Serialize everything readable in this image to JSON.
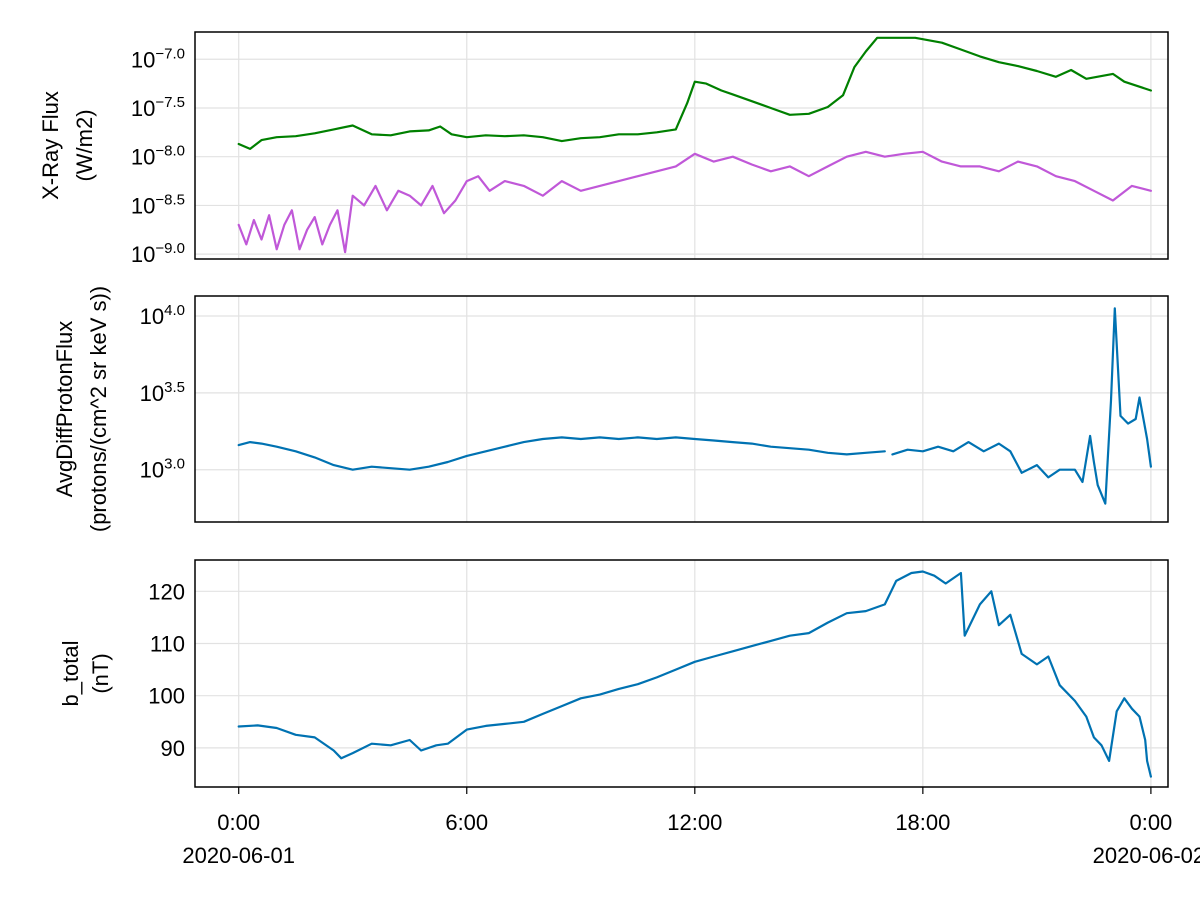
{
  "chart_data": [
    {
      "type": "line",
      "panel": "xray",
      "ylabel": [
        "X-Ray Flux",
        "(W/m2)"
      ],
      "yscale": "log10",
      "ylim": [
        -9.05,
        -6.72
      ],
      "yticks": [
        {
          "exp": -7.0,
          "label": "10",
          "sup": "−7.0"
        },
        {
          "exp": -7.5,
          "label": "10",
          "sup": "−7.5"
        },
        {
          "exp": -8.0,
          "label": "10",
          "sup": "−8.0"
        },
        {
          "exp": -8.5,
          "label": "10",
          "sup": "−8.5"
        },
        {
          "exp": -9.0,
          "label": "10",
          "sup": "−9.0"
        }
      ],
      "grid": true,
      "series": [
        {
          "color": "#008000",
          "log_values": [
            [
              0,
              -7.87
            ],
            [
              0.3,
              -7.92
            ],
            [
              0.6,
              -7.83
            ],
            [
              1.0,
              -7.8
            ],
            [
              1.5,
              -7.79
            ],
            [
              2.0,
              -7.76
            ],
            [
              2.5,
              -7.72
            ],
            [
              3.0,
              -7.68
            ],
            [
              3.5,
              -7.77
            ],
            [
              4.0,
              -7.78
            ],
            [
              4.5,
              -7.74
            ],
            [
              5.0,
              -7.73
            ],
            [
              5.3,
              -7.69
            ],
            [
              5.6,
              -7.77
            ],
            [
              6.0,
              -7.8
            ],
            [
              6.5,
              -7.78
            ],
            [
              7.0,
              -7.79
            ],
            [
              7.5,
              -7.78
            ],
            [
              8.0,
              -7.8
            ],
            [
              8.5,
              -7.84
            ],
            [
              9.0,
              -7.81
            ],
            [
              9.5,
              -7.8
            ],
            [
              10.0,
              -7.77
            ],
            [
              10.5,
              -7.77
            ],
            [
              11.0,
              -7.75
            ],
            [
              11.5,
              -7.72
            ],
            [
              11.8,
              -7.45
            ],
            [
              12.0,
              -7.23
            ],
            [
              12.3,
              -7.25
            ],
            [
              12.7,
              -7.32
            ],
            [
              13.0,
              -7.36
            ],
            [
              13.5,
              -7.43
            ],
            [
              14.0,
              -7.5
            ],
            [
              14.5,
              -7.57
            ],
            [
              15.0,
              -7.56
            ],
            [
              15.5,
              -7.49
            ],
            [
              15.9,
              -7.37
            ],
            [
              16.2,
              -7.08
            ],
            [
              16.5,
              -6.92
            ],
            [
              16.8,
              -6.78
            ],
            [
              17.2,
              -6.78
            ],
            [
              17.8,
              -6.78
            ],
            [
              18.5,
              -6.83
            ],
            [
              19.0,
              -6.9
            ],
            [
              19.5,
              -6.97
            ],
            [
              20.0,
              -7.03
            ],
            [
              20.5,
              -7.07
            ],
            [
              21.0,
              -7.12
            ],
            [
              21.5,
              -7.18
            ],
            [
              21.9,
              -7.11
            ],
            [
              22.3,
              -7.2
            ],
            [
              23.0,
              -7.15
            ],
            [
              23.3,
              -7.23
            ],
            [
              24.0,
              -7.32
            ]
          ]
        },
        {
          "color": "#c058d8",
          "log_values": [
            [
              0,
              -8.7
            ],
            [
              0.2,
              -8.9
            ],
            [
              0.4,
              -8.65
            ],
            [
              0.6,
              -8.85
            ],
            [
              0.8,
              -8.6
            ],
            [
              1.0,
              -8.95
            ],
            [
              1.2,
              -8.7
            ],
            [
              1.4,
              -8.55
            ],
            [
              1.6,
              -8.95
            ],
            [
              1.8,
              -8.75
            ],
            [
              2.0,
              -8.62
            ],
            [
              2.2,
              -8.9
            ],
            [
              2.4,
              -8.7
            ],
            [
              2.6,
              -8.55
            ],
            [
              2.8,
              -8.98
            ],
            [
              3.0,
              -8.4
            ],
            [
              3.3,
              -8.5
            ],
            [
              3.6,
              -8.3
            ],
            [
              3.9,
              -8.55
            ],
            [
              4.2,
              -8.35
            ],
            [
              4.5,
              -8.4
            ],
            [
              4.8,
              -8.5
            ],
            [
              5.1,
              -8.3
            ],
            [
              5.4,
              -8.58
            ],
            [
              5.7,
              -8.45
            ],
            [
              6.0,
              -8.25
            ],
            [
              6.3,
              -8.2
            ],
            [
              6.6,
              -8.35
            ],
            [
              7.0,
              -8.25
            ],
            [
              7.5,
              -8.3
            ],
            [
              8.0,
              -8.4
            ],
            [
              8.5,
              -8.25
            ],
            [
              9.0,
              -8.35
            ],
            [
              9.5,
              -8.3
            ],
            [
              10.0,
              -8.25
            ],
            [
              10.5,
              -8.2
            ],
            [
              11.0,
              -8.15
            ],
            [
              11.5,
              -8.1
            ],
            [
              12.0,
              -7.97
            ],
            [
              12.5,
              -8.05
            ],
            [
              13.0,
              -8.0
            ],
            [
              13.5,
              -8.08
            ],
            [
              14.0,
              -8.15
            ],
            [
              14.5,
              -8.1
            ],
            [
              15.0,
              -8.2
            ],
            [
              15.5,
              -8.1
            ],
            [
              16.0,
              -8.0
            ],
            [
              16.5,
              -7.95
            ],
            [
              17.0,
              -8.0
            ],
            [
              17.5,
              -7.97
            ],
            [
              18.0,
              -7.95
            ],
            [
              18.5,
              -8.05
            ],
            [
              19.0,
              -8.1
            ],
            [
              19.5,
              -8.1
            ],
            [
              20.0,
              -8.15
            ],
            [
              20.5,
              -8.05
            ],
            [
              21.0,
              -8.1
            ],
            [
              21.5,
              -8.2
            ],
            [
              22.0,
              -8.25
            ],
            [
              22.5,
              -8.35
            ],
            [
              23.0,
              -8.45
            ],
            [
              23.5,
              -8.3
            ],
            [
              24.0,
              -8.35
            ]
          ]
        }
      ]
    },
    {
      "type": "line",
      "panel": "protons",
      "ylabel": [
        "AvgDiffProtonFlux",
        "(protons/(cm^2 sr keV s))"
      ],
      "yscale": "log10",
      "ylim": [
        2.66,
        4.13
      ],
      "yticks": [
        {
          "exp": 4.0,
          "label": "10",
          "sup": "4.0"
        },
        {
          "exp": 3.5,
          "label": "10",
          "sup": "3.5"
        },
        {
          "exp": 3.0,
          "label": "10",
          "sup": "3.0"
        }
      ],
      "grid": true,
      "series": [
        {
          "color": "#0072b2",
          "segments": [
            [
              [
                0,
                3.16
              ],
              [
                0.3,
                3.18
              ],
              [
                0.6,
                3.17
              ],
              [
                1.0,
                3.15
              ],
              [
                1.5,
                3.12
              ],
              [
                2.0,
                3.08
              ],
              [
                2.5,
                3.03
              ],
              [
                3.0,
                3.0
              ],
              [
                3.5,
                3.02
              ],
              [
                4.0,
                3.01
              ],
              [
                4.5,
                3.0
              ],
              [
                5.0,
                3.02
              ],
              [
                5.5,
                3.05
              ],
              [
                6.0,
                3.09
              ],
              [
                6.5,
                3.12
              ],
              [
                7.0,
                3.15
              ],
              [
                7.5,
                3.18
              ],
              [
                8.0,
                3.2
              ],
              [
                8.5,
                3.21
              ],
              [
                9.0,
                3.2
              ],
              [
                9.5,
                3.21
              ],
              [
                10.0,
                3.2
              ],
              [
                10.5,
                3.21
              ],
              [
                11.0,
                3.2
              ],
              [
                11.5,
                3.21
              ],
              [
                12.0,
                3.2
              ],
              [
                12.5,
                3.19
              ],
              [
                13.0,
                3.18
              ],
              [
                13.5,
                3.17
              ],
              [
                14.0,
                3.15
              ],
              [
                14.5,
                3.14
              ],
              [
                15.0,
                3.13
              ],
              [
                15.5,
                3.11
              ],
              [
                16.0,
                3.1
              ],
              [
                16.5,
                3.11
              ],
              [
                17.0,
                3.12
              ]
            ],
            [
              [
                17.2,
                3.1
              ],
              [
                17.6,
                3.13
              ],
              [
                18.0,
                3.12
              ],
              [
                18.4,
                3.15
              ],
              [
                18.8,
                3.12
              ],
              [
                19.2,
                3.18
              ],
              [
                19.6,
                3.12
              ],
              [
                20.0,
                3.17
              ],
              [
                20.3,
                3.12
              ],
              [
                20.6,
                2.98
              ],
              [
                21.0,
                3.03
              ],
              [
                21.3,
                2.95
              ],
              [
                21.6,
                3.0
              ],
              [
                22.0,
                3.0
              ],
              [
                22.2,
                2.92
              ],
              [
                22.4,
                3.22
              ],
              [
                22.5,
                3.05
              ],
              [
                22.6,
                2.9
              ],
              [
                22.8,
                2.78
              ],
              [
                22.95,
                3.45
              ],
              [
                23.05,
                4.05
              ],
              [
                23.2,
                3.35
              ],
              [
                23.4,
                3.3
              ],
              [
                23.6,
                3.33
              ],
              [
                23.7,
                3.47
              ],
              [
                23.9,
                3.2
              ],
              [
                24.0,
                3.02
              ]
            ]
          ]
        }
      ]
    },
    {
      "type": "line",
      "panel": "btotal",
      "ylabel": [
        "b_total",
        "(nT)"
      ],
      "yscale": "linear",
      "ylim": [
        82.5,
        126.0
      ],
      "yticks": [
        {
          "value": 120,
          "label": "120"
        },
        {
          "value": 110,
          "label": "110"
        },
        {
          "value": 100,
          "label": "100"
        },
        {
          "value": 90,
          "label": "90"
        }
      ],
      "grid": true,
      "series": [
        {
          "color": "#0072b2",
          "values": [
            [
              0,
              94.1
            ],
            [
              0.5,
              94.3
            ],
            [
              1.0,
              93.8
            ],
            [
              1.5,
              92.5
            ],
            [
              2.0,
              92.0
            ],
            [
              2.5,
              89.5
            ],
            [
              2.7,
              88.0
            ],
            [
              3.0,
              89.0
            ],
            [
              3.5,
              90.8
            ],
            [
              4.0,
              90.5
            ],
            [
              4.5,
              91.5
            ],
            [
              4.8,
              89.5
            ],
            [
              5.2,
              90.5
            ],
            [
              5.5,
              90.8
            ],
            [
              6.0,
              93.5
            ],
            [
              6.5,
              94.2
            ],
            [
              7.0,
              94.6
            ],
            [
              7.5,
              95.0
            ],
            [
              8.0,
              96.5
            ],
            [
              8.5,
              98.0
            ],
            [
              9.0,
              99.5
            ],
            [
              9.5,
              100.2
            ],
            [
              10.0,
              101.3
            ],
            [
              10.5,
              102.2
            ],
            [
              11.0,
              103.5
            ],
            [
              11.5,
              105.0
            ],
            [
              12.0,
              106.5
            ],
            [
              12.5,
              107.5
            ],
            [
              13.0,
              108.5
            ],
            [
              13.5,
              109.5
            ],
            [
              14.0,
              110.5
            ],
            [
              14.5,
              111.5
            ],
            [
              15.0,
              112.0
            ],
            [
              15.5,
              114.0
            ],
            [
              16.0,
              115.8
            ],
            [
              16.5,
              116.2
            ],
            [
              17.0,
              117.5
            ],
            [
              17.3,
              122.0
            ],
            [
              17.7,
              123.5
            ],
            [
              18.0,
              123.8
            ],
            [
              18.3,
              123.0
            ],
            [
              18.6,
              121.5
            ],
            [
              19.0,
              123.5
            ],
            [
              19.1,
              111.5
            ],
            [
              19.5,
              117.5
            ],
            [
              19.8,
              120.0
            ],
            [
              20.0,
              113.5
            ],
            [
              20.3,
              115.5
            ],
            [
              20.6,
              108.0
            ],
            [
              21.0,
              106.0
            ],
            [
              21.3,
              107.5
            ],
            [
              21.6,
              102.0
            ],
            [
              22.0,
              99.0
            ],
            [
              22.3,
              96.0
            ],
            [
              22.5,
              92.0
            ],
            [
              22.7,
              90.5
            ],
            [
              22.9,
              87.5
            ],
            [
              23.1,
              97.0
            ],
            [
              23.3,
              99.5
            ],
            [
              23.5,
              97.5
            ],
            [
              23.7,
              96.0
            ],
            [
              23.85,
              91.5
            ],
            [
              23.9,
              87.5
            ],
            [
              24.0,
              84.5
            ]
          ]
        }
      ]
    }
  ],
  "xaxis": {
    "range_hours": [
      -1.15,
      24.45
    ],
    "ticks": [
      {
        "h": 0,
        "time": "0:00",
        "date": "2020-06-01"
      },
      {
        "h": 6,
        "time": "6:00",
        "date": ""
      },
      {
        "h": 12,
        "time": "12:00",
        "date": ""
      },
      {
        "h": 18,
        "time": "18:00",
        "date": ""
      },
      {
        "h": 24,
        "time": "0:00",
        "date": "2020-06-02"
      }
    ]
  }
}
